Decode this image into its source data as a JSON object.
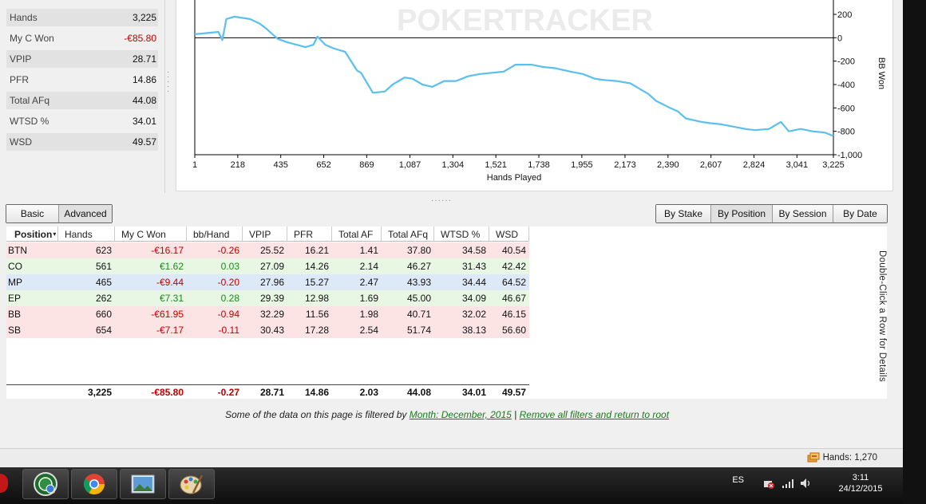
{
  "stats": [
    {
      "label": "Hands",
      "value": "3,225",
      "neg": false
    },
    {
      "label": "My C Won",
      "value": "-€85.80",
      "neg": true
    },
    {
      "label": "VPIP",
      "value": "28.71",
      "neg": false
    },
    {
      "label": "PFR",
      "value": "14.86",
      "neg": false
    },
    {
      "label": "Total AFq",
      "value": "44.08",
      "neg": false
    },
    {
      "label": "WTSD %",
      "value": "34.01",
      "neg": false
    },
    {
      "label": "WSD",
      "value": "49.57",
      "neg": false
    }
  ],
  "chart": {
    "watermark": "POKERTRACKER",
    "xlabel": "Hands Played",
    "ylabel": "BB Won",
    "line_color": "#5bbfef"
  },
  "chart_data": {
    "type": "line",
    "xlabel": "Hands Played",
    "ylabel": "BB Won",
    "xlim": [
      1,
      3225
    ],
    "ylim": [
      -1000,
      200
    ],
    "x_ticks": [
      1,
      218,
      435,
      652,
      869,
      1087,
      1304,
      1521,
      1738,
      1955,
      2173,
      2390,
      2607,
      2824,
      3041,
      3225
    ],
    "x_tick_labels": [
      "1",
      "218",
      "435",
      "652",
      "869",
      "1,087",
      "1,304",
      "1,521",
      "1,738",
      "1,955",
      "2,173",
      "2,390",
      "2,607",
      "2,824",
      "3,041",
      "3,225"
    ],
    "y_ticks": [
      200,
      0,
      -200,
      -400,
      -600,
      -800,
      -1000
    ],
    "y_tick_labels": [
      "200",
      "0",
      "-200",
      "-400",
      "-600",
      "-800",
      "-1,000"
    ],
    "series": [
      {
        "x": [
          1,
          60,
          120,
          140,
          160,
          200,
          280,
          330,
          360,
          420,
          470,
          560,
          600,
          620,
          660,
          700,
          760,
          820,
          840,
          900,
          960,
          1000,
          1060,
          1100,
          1150,
          1200,
          1260,
          1320,
          1380,
          1440,
          1500,
          1560,
          1620,
          1700,
          1760,
          1820,
          1900,
          1960,
          2020,
          2060,
          2130,
          2200,
          2240,
          2290,
          2330,
          2400,
          2440,
          2480,
          2560,
          2600,
          2660,
          2720,
          2780,
          2830,
          2900,
          2960,
          3000,
          3060,
          3120,
          3180,
          3225
        ],
        "y": [
          30,
          40,
          50,
          -20,
          160,
          180,
          160,
          120,
          80,
          -10,
          -40,
          -80,
          -60,
          10,
          -60,
          -90,
          -120,
          -280,
          -300,
          -470,
          -460,
          -400,
          -340,
          -350,
          -400,
          -420,
          -370,
          -370,
          -330,
          -310,
          -300,
          -290,
          -230,
          -230,
          -250,
          -260,
          -290,
          -310,
          -350,
          -360,
          -370,
          -390,
          -430,
          -480,
          -540,
          -600,
          -630,
          -690,
          -720,
          -730,
          -740,
          -760,
          -780,
          -790,
          -780,
          -720,
          -800,
          -780,
          -800,
          -810,
          -840
        ]
      }
    ],
    "grid": false
  },
  "view_toggle": {
    "basic": "Basic",
    "advanced": "Advanced"
  },
  "group_tabs": [
    "By Stake",
    "By Position",
    "By Session",
    "By Date"
  ],
  "table": {
    "headers": [
      "Position",
      "Hands",
      "My C Won",
      "bb/Hand",
      "VPIP",
      "PFR",
      "Total AF",
      "Total AFq",
      "WTSD %",
      "WSD"
    ],
    "rows": [
      {
        "tint": "red",
        "cells": [
          "BTN",
          "623",
          "-€16.17",
          "-0.26",
          "25.52",
          "16.21",
          "1.41",
          "37.80",
          "34.58",
          "40.54"
        ]
      },
      {
        "tint": "green",
        "cells": [
          "CO",
          "561",
          "€1.62",
          "0.03",
          "27.09",
          "14.26",
          "2.14",
          "46.27",
          "31.43",
          "42.42"
        ]
      },
      {
        "tint": "blue",
        "cells": [
          "MP",
          "465",
          "-€9.44",
          "-0.20",
          "27.96",
          "15.27",
          "2.47",
          "43.93",
          "34.44",
          "64.52"
        ]
      },
      {
        "tint": "green",
        "cells": [
          "EP",
          "262",
          "€7.31",
          "0.28",
          "29.39",
          "12.98",
          "1.69",
          "45.00",
          "34.09",
          "46.67"
        ]
      },
      {
        "tint": "red",
        "cells": [
          "BB",
          "660",
          "-€61.95",
          "-0.94",
          "32.29",
          "11.56",
          "1.98",
          "40.71",
          "32.02",
          "46.15"
        ]
      },
      {
        "tint": "red",
        "cells": [
          "SB",
          "654",
          "-€7.17",
          "-0.11",
          "30.43",
          "17.28",
          "2.54",
          "51.74",
          "38.13",
          "56.60"
        ]
      }
    ],
    "totals": [
      "",
      "3,225",
      "-€85.80",
      "-0.27",
      "28.71",
      "14.86",
      "2.03",
      "44.08",
      "34.01",
      "49.57"
    ],
    "side_hint": "Double-Click a Row for Details"
  },
  "filter": {
    "prefix": "Some of the data on this page is filtered by ",
    "link1": "Month: December, 2015",
    "sep": " | ",
    "link2": "Remove all filters and return to root"
  },
  "status": {
    "hands": "Hands: 1,270"
  },
  "tray": {
    "lang": "ES",
    "time": "3:11",
    "date": "24/12/2015"
  }
}
